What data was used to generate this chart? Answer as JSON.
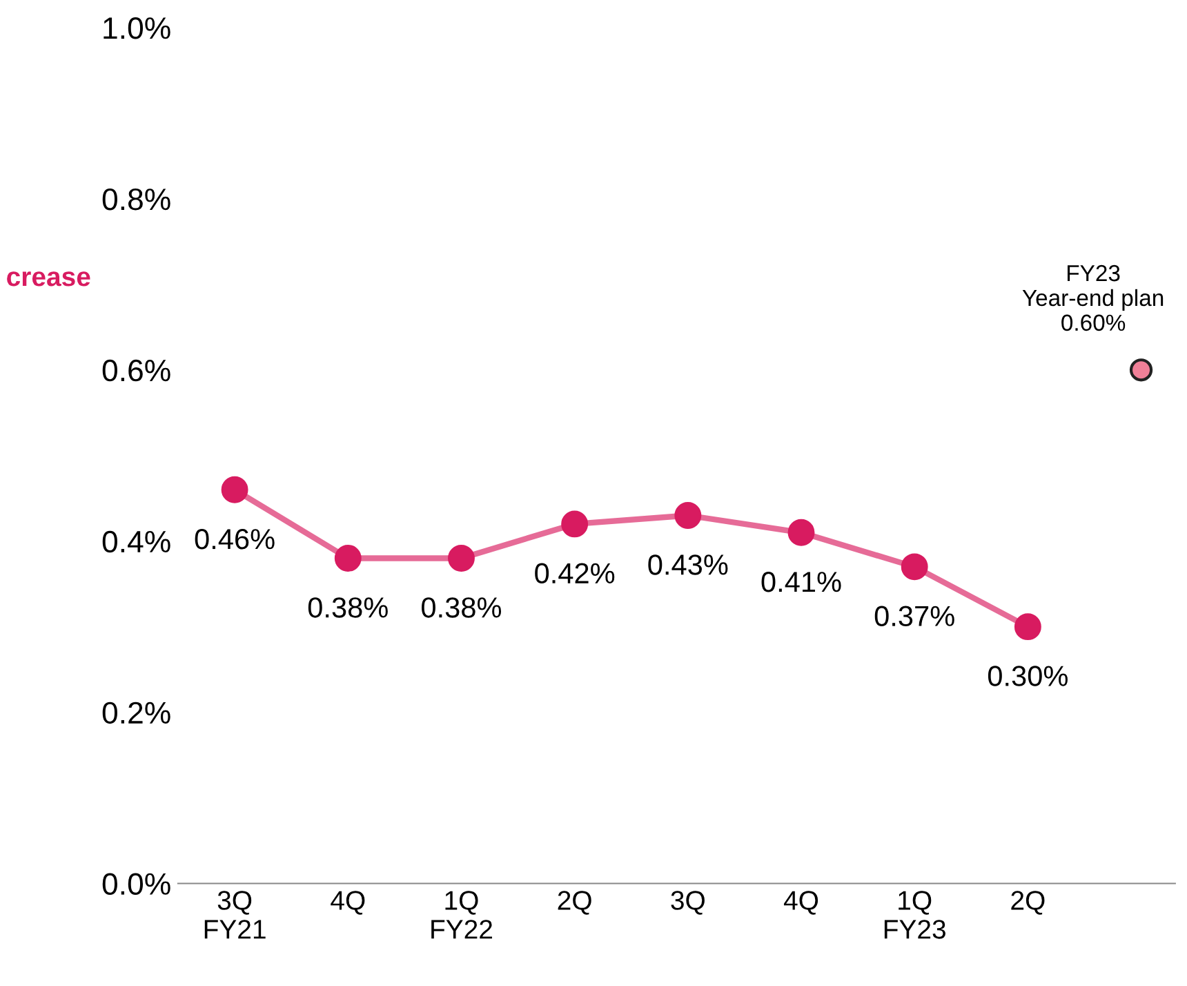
{
  "chart_data": {
    "type": "line",
    "categories": [
      "3Q\nFY21",
      "4Q",
      "1Q\nFY22",
      "2Q",
      "3Q",
      "4Q",
      "1Q\nFY23",
      "2Q",
      null
    ],
    "series": [
      {
        "color": "#d81b60",
        "values": [
          0.46,
          0.38,
          0.38,
          0.42,
          0.43,
          0.41,
          0.37,
          0.3,
          null
        ],
        "value_labels": [
          "0.46%",
          "0.38%",
          "0.38%",
          "0.42%",
          "0.43%",
          "0.41%",
          "0.37%",
          "0.30%",
          null
        ]
      },
      {
        "type": "scatter",
        "color": "#f08098",
        "values": [
          null,
          null,
          null,
          null,
          null,
          null,
          null,
          null,
          0.6
        ],
        "value_labels": [
          null,
          null,
          null,
          null,
          null,
          null,
          null,
          null,
          "FY23\nYear-end plan\n0.60%"
        ]
      }
    ],
    "ylim": [
      0,
      1.0
    ],
    "yticks": [
      {
        "value": 0,
        "label": "0.0%"
      },
      {
        "value": 0.2,
        "label": "0.2%"
      },
      {
        "value": 0.4,
        "label": "0.4%"
      },
      {
        "value": 0.6,
        "label": "0.6%"
      },
      {
        "value": 0.8,
        "label": "0.8%"
      },
      {
        "value": 1.0,
        "label": "1.0%"
      }
    ],
    "marker": "circle",
    "grid": false,
    "legend": false,
    "annotations": [
      "crease"
    ]
  }
}
